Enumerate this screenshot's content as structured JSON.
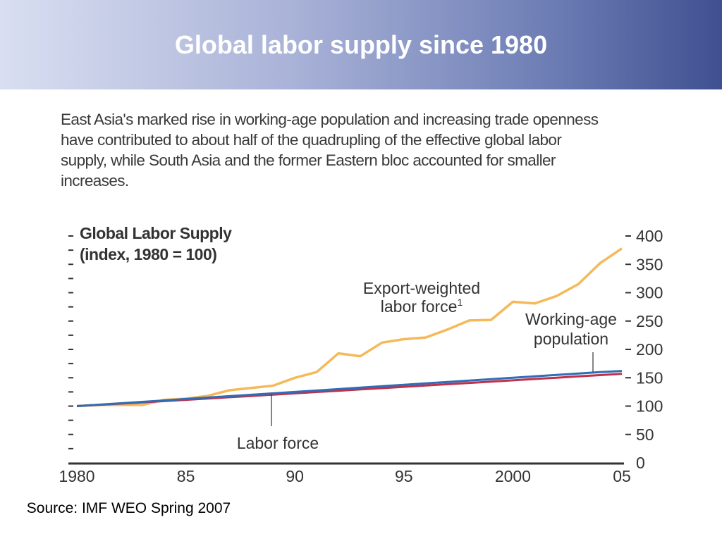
{
  "slide": {
    "title": "Global labor supply since 1980",
    "description": "East Asia's marked rise in working-age population and increasing trade openness\nhave contributed to about half of the quadrupling of the effective global labor\nsupply, while South Asia and the former Eastern bloc accounted for smaller\nincreases.",
    "source": "Source: IMF WEO Spring 2007"
  },
  "chart_data": {
    "type": "line",
    "title_line1": "Global Labor Supply",
    "title_line2": "(index, 1980 = 100)",
    "x": [
      1980,
      1981,
      1982,
      1983,
      1984,
      1985,
      1986,
      1987,
      1988,
      1989,
      1990,
      1991,
      1992,
      1993,
      1994,
      1995,
      1996,
      1997,
      1998,
      1999,
      2000,
      2001,
      2002,
      2003,
      2004,
      2005
    ],
    "x_tick_values": [
      1980,
      1985,
      1990,
      1995,
      2000,
      2005
    ],
    "x_tick_labels": [
      "1980",
      "85",
      "90",
      "95",
      "2000",
      "05"
    ],
    "xlim": [
      1980,
      2005
    ],
    "ylim": [
      0,
      400
    ],
    "y_tick_values": [
      0,
      50,
      100,
      150,
      200,
      250,
      300,
      350,
      400
    ],
    "y_tick_labels": [
      "0",
      "50",
      "100",
      "150",
      "200",
      "250",
      "300",
      "350",
      "400"
    ],
    "series": [
      {
        "key": "export",
        "color": "#f6b95a",
        "values": [
          100,
          102,
          102,
          102,
          111,
          113,
          118,
          128,
          132,
          136,
          150,
          160,
          193,
          188,
          212,
          218,
          221,
          235,
          251,
          252,
          284,
          281,
          294,
          315,
          352,
          378
        ]
      },
      {
        "key": "labor",
        "color": "#c0304a",
        "values": [
          100,
          102.2,
          104.4,
          106.6,
          108.8,
          111,
          113.3,
          115.6,
          117.9,
          120.2,
          122.5,
          124.8,
          127.1,
          129.4,
          131.7,
          134,
          136.3,
          138.6,
          140.9,
          143.2,
          145.5,
          147.8,
          150.1,
          152.4,
          154.7,
          157
        ]
      },
      {
        "key": "working",
        "color": "#2f6db5",
        "values": [
          100,
          102.5,
          105,
          107.5,
          110,
          112.5,
          115,
          117.5,
          120,
          122.5,
          125,
          127.5,
          130,
          132.5,
          135,
          137.5,
          140,
          142.5,
          145,
          147.5,
          150,
          152.5,
          155,
          157.5,
          160,
          162
        ]
      }
    ],
    "annotations": {
      "export_line1": "Export-weighted",
      "export_line2": "labor force",
      "export_sup": "1",
      "working_line1": "Working-age",
      "working_line2": "population",
      "labor": "Labor force"
    },
    "grid": false
  }
}
